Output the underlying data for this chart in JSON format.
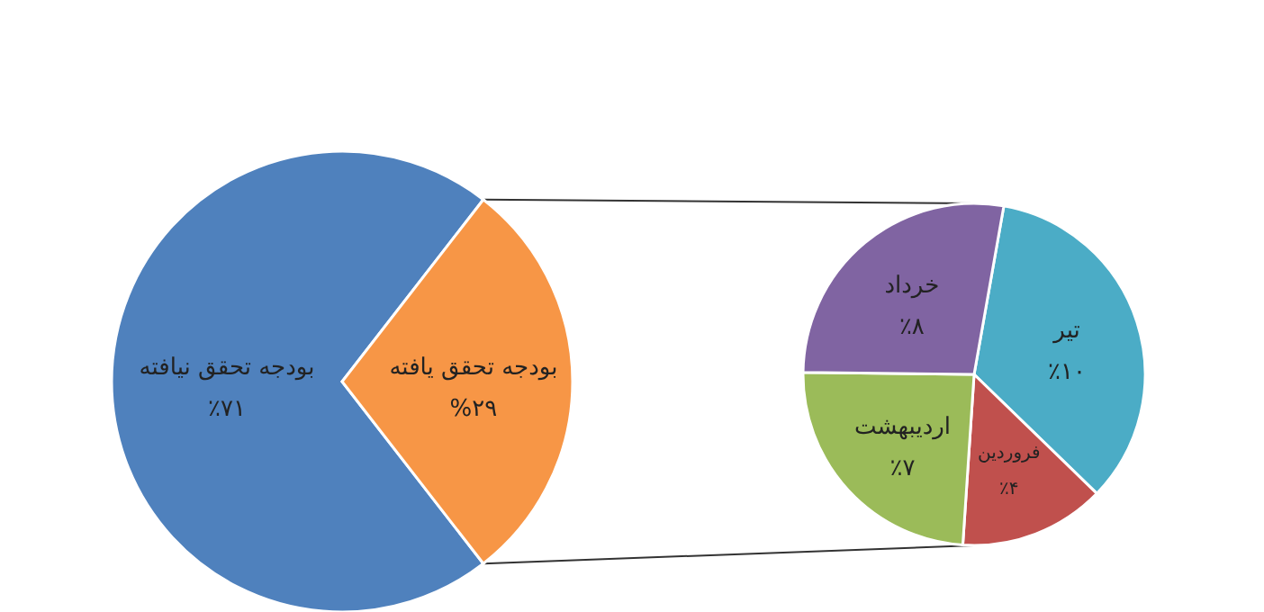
{
  "chart_data": [
    {
      "type": "pie",
      "categories": [
        "بودجه تحقق نیافته",
        "بودجه تحقق یافته"
      ],
      "values": [
        71,
        29
      ],
      "colors": [
        "#4f81bd",
        "#f79646"
      ],
      "value_labels": [
        "٪۷۱",
        "%۲۹"
      ]
    },
    {
      "type": "pie",
      "categories": [
        "تیر",
        "فروردین",
        "اردیبهشت",
        "خرداد"
      ],
      "values": [
        10,
        4,
        7,
        8
      ],
      "colors": [
        "#4bacc6",
        "#c0504d",
        "#9bbb59",
        "#8064a2"
      ],
      "value_labels": [
        "٪۱۰",
        "٪۴",
        "٪۷",
        "٪۸"
      ]
    }
  ]
}
